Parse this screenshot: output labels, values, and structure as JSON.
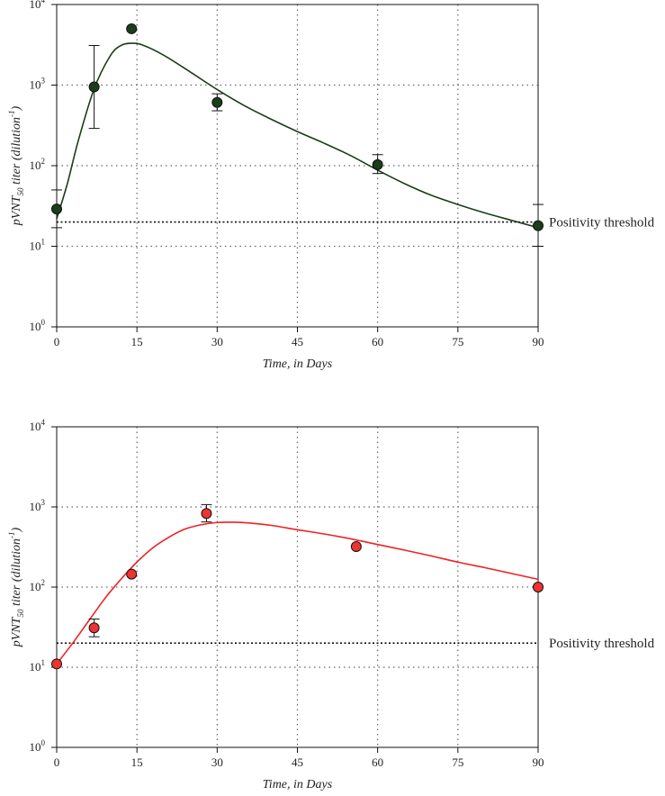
{
  "charts": [
    {
      "type": "line",
      "chart_type": "scatter with error bars and fitted curve (log y axis)",
      "title": "",
      "xlabel": "Time, in Days",
      "ylabel": {
        "base": "pVNT",
        "sub": "50",
        "mid": " titer (",
        "dil": "dilution",
        "exp": "-1",
        "end": ")"
      },
      "xlim": [
        0,
        90
      ],
      "ylim": [
        1,
        10000
      ],
      "y_scale": "log10",
      "x_ticks": [
        0,
        15,
        30,
        45,
        60,
        75,
        90
      ],
      "x_tick_labels": [
        "0",
        "15",
        "30",
        "45",
        "60",
        "75",
        "90"
      ],
      "y_ticks": [
        {
          "base": "10",
          "exp": "0"
        },
        {
          "base": "10",
          "exp": "1"
        },
        {
          "base": "10",
          "exp": "2"
        },
        {
          "base": "10",
          "exp": "3"
        },
        {
          "base": "10",
          "exp": "4"
        }
      ],
      "grid": "dotted",
      "color": "#1a3d1a",
      "curve_color": "#1a3d1a",
      "points": [
        {
          "x": 0,
          "y": 29,
          "err_low": 17,
          "err_high": 50
        },
        {
          "x": 7,
          "y": 950,
          "err_low": 290,
          "err_high": 3100
        },
        {
          "x": 14,
          "y": 5000
        },
        {
          "x": 30,
          "y": 610,
          "err_low": 480,
          "err_high": 780
        },
        {
          "x": 60,
          "y": 103,
          "err_low": 80,
          "err_high": 137
        },
        {
          "x": 90,
          "y": 18,
          "err_low": 10,
          "err_high": 33
        }
      ],
      "fit_curve": [
        [
          0,
          22
        ],
        [
          2,
          60
        ],
        [
          4,
          200
        ],
        [
          7,
          900
        ],
        [
          10,
          2300
        ],
        [
          12,
          3100
        ],
        [
          14,
          3300
        ],
        [
          16,
          3150
        ],
        [
          20,
          2350
        ],
        [
          25,
          1450
        ],
        [
          30,
          880
        ],
        [
          35,
          560
        ],
        [
          40,
          380
        ],
        [
          45,
          265
        ],
        [
          50,
          190
        ],
        [
          55,
          133
        ],
        [
          60,
          88
        ],
        [
          65,
          60
        ],
        [
          70,
          43
        ],
        [
          75,
          33
        ],
        [
          80,
          26
        ],
        [
          85,
          21
        ],
        [
          90,
          17
        ]
      ],
      "threshold": {
        "value": 20,
        "label": "Positivity threshold"
      }
    },
    {
      "type": "line",
      "chart_type": "scatter with error bars and fitted curve (log y axis)",
      "title": "",
      "xlabel": "Time, in Days",
      "ylabel": {
        "base": "pVNT",
        "sub": "50",
        "mid": " titer (",
        "dil": "dilution",
        "exp": "-1",
        "end": ")"
      },
      "xlim": [
        0,
        90
      ],
      "ylim": [
        1,
        10000
      ],
      "y_scale": "log10",
      "x_ticks": [
        0,
        15,
        30,
        45,
        60,
        75,
        90
      ],
      "x_tick_labels": [
        "0",
        "15",
        "30",
        "45",
        "60",
        "75",
        "90"
      ],
      "y_ticks": [
        {
          "base": "10",
          "exp": "0"
        },
        {
          "base": "10",
          "exp": "1"
        },
        {
          "base": "10",
          "exp": "2"
        },
        {
          "base": "10",
          "exp": "3"
        },
        {
          "base": "10",
          "exp": "4"
        }
      ],
      "grid": "dotted",
      "color": "#ee3333",
      "curve_color": "#ee2222",
      "points": [
        {
          "x": 0,
          "y": 11
        },
        {
          "x": 7,
          "y": 31,
          "err_low": 24,
          "err_high": 40
        },
        {
          "x": 14,
          "y": 145
        },
        {
          "x": 28,
          "y": 830,
          "err_low": 650,
          "err_high": 1070
        },
        {
          "x": 56,
          "y": 320
        },
        {
          "x": 90,
          "y": 100
        }
      ],
      "fit_curve": [
        [
          0,
          11
        ],
        [
          3,
          20
        ],
        [
          6,
          38
        ],
        [
          9,
          72
        ],
        [
          12,
          125
        ],
        [
          15,
          205
        ],
        [
          18,
          310
        ],
        [
          21,
          420
        ],
        [
          24,
          530
        ],
        [
          27,
          600
        ],
        [
          30,
          640
        ],
        [
          33,
          645
        ],
        [
          36,
          630
        ],
        [
          40,
          590
        ],
        [
          45,
          520
        ],
        [
          50,
          460
        ],
        [
          55,
          400
        ],
        [
          60,
          340
        ],
        [
          65,
          290
        ],
        [
          70,
          245
        ],
        [
          75,
          205
        ],
        [
          80,
          175
        ],
        [
          85,
          148
        ],
        [
          90,
          125
        ]
      ],
      "threshold": {
        "value": 20,
        "label": "Positivity threshold"
      }
    }
  ]
}
